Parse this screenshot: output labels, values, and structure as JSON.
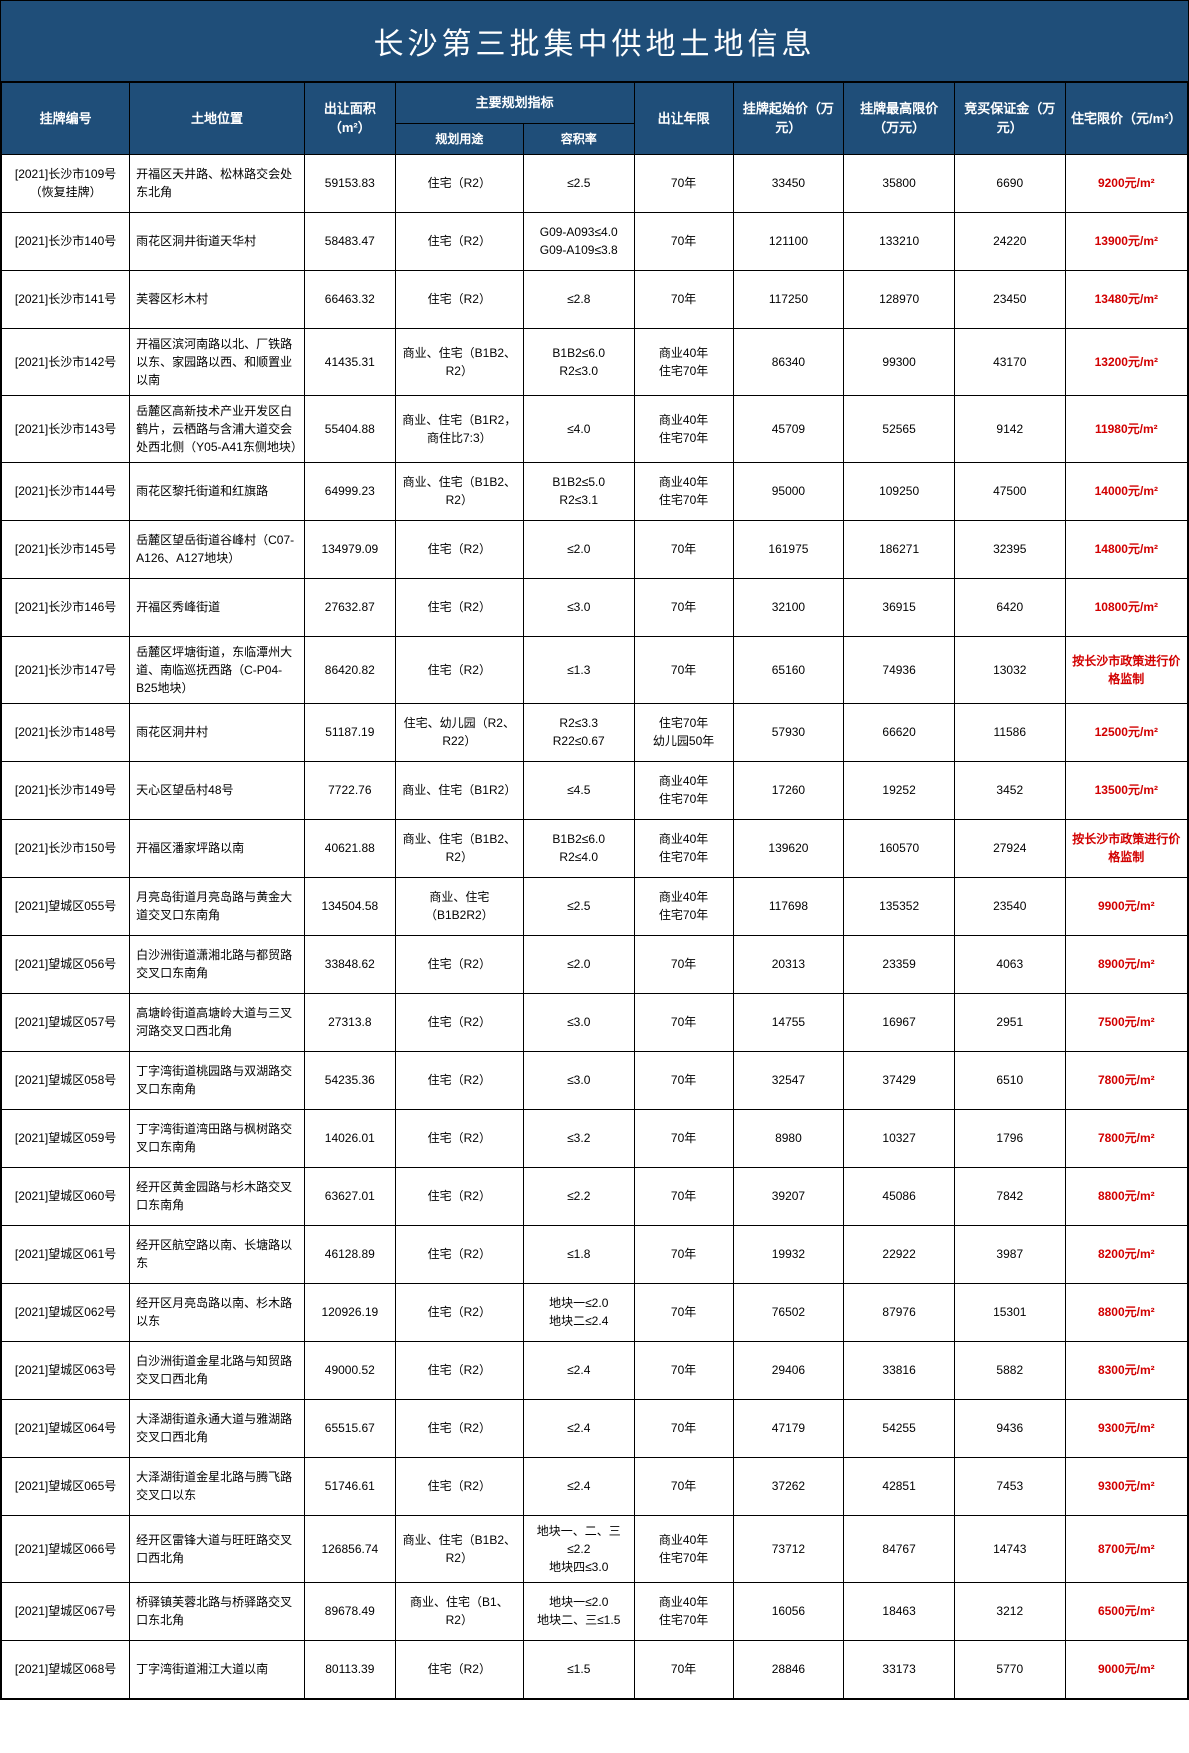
{
  "title": "长沙第三批集中供地土地信息",
  "headers": {
    "id": "挂牌编号",
    "location": "土地位置",
    "area": "出让面积（m²）",
    "planning_group": "主要规划指标",
    "use": "规划用途",
    "far": "容积率",
    "term": "出让年限",
    "start_price": "挂牌起始价（万元）",
    "max_price": "挂牌最高限价（万元）",
    "deposit": "竞买保证金（万元）",
    "limit_price": "住宅限价（元/m²）"
  },
  "rows": [
    {
      "id": "[2021]长沙市109号（恢复挂牌）",
      "location": "开福区天井路、松林路交会处东北角",
      "area": "59153.83",
      "use": "住宅（R2）",
      "far": "≤2.5",
      "term": "70年",
      "start": "33450",
      "max": "35800",
      "deposit": "6690",
      "price": "9200元/m²"
    },
    {
      "id": "[2021]长沙市140号",
      "location": "雨花区洞井街道天华村",
      "area": "58483.47",
      "use": "住宅（R2）",
      "far": "G09-A093≤4.0\nG09-A109≤3.8",
      "term": "70年",
      "start": "121100",
      "max": "133210",
      "deposit": "24220",
      "price": "13900元/m²"
    },
    {
      "id": "[2021]长沙市141号",
      "location": "芙蓉区杉木村",
      "area": "66463.32",
      "use": "住宅（R2）",
      "far": "≤2.8",
      "term": "70年",
      "start": "117250",
      "max": "128970",
      "deposit": "23450",
      "price": "13480元/m²"
    },
    {
      "id": "[2021]长沙市142号",
      "location": "开福区滨河南路以北、厂铁路以东、家园路以西、和顺置业以南",
      "area": "41435.31",
      "use": "商业、住宅（B1B2、R2）",
      "far": "B1B2≤6.0\nR2≤3.0",
      "term": "商业40年\n住宅70年",
      "start": "86340",
      "max": "99300",
      "deposit": "43170",
      "price": "13200元/m²"
    },
    {
      "id": "[2021]长沙市143号",
      "location": "岳麓区高新技术产业开发区白鹤片，云栖路与含浦大道交会处西北侧（Y05-A41东侧地块）",
      "area": "55404.88",
      "use": "商业、住宅（B1R2，商住比7:3）",
      "far": "≤4.0",
      "term": "商业40年\n住宅70年",
      "start": "45709",
      "max": "52565",
      "deposit": "9142",
      "price": "11980元/m²"
    },
    {
      "id": "[2021]长沙市144号",
      "location": "雨花区黎托街道和红旗路",
      "area": "64999.23",
      "use": "商业、住宅（B1B2、R2）",
      "far": "B1B2≤5.0\nR2≤3.1",
      "term": "商业40年\n住宅70年",
      "start": "95000",
      "max": "109250",
      "deposit": "47500",
      "price": "14000元/m²"
    },
    {
      "id": "[2021]长沙市145号",
      "location": "岳麓区望岳街道谷峰村（C07-A126、A127地块）",
      "area": "134979.09",
      "use": "住宅（R2）",
      "far": "≤2.0",
      "term": "70年",
      "start": "161975",
      "max": "186271",
      "deposit": "32395",
      "price": "14800元/m²"
    },
    {
      "id": "[2021]长沙市146号",
      "location": "开福区秀峰街道",
      "area": "27632.87",
      "use": "住宅（R2）",
      "far": "≤3.0",
      "term": "70年",
      "start": "32100",
      "max": "36915",
      "deposit": "6420",
      "price": "10800元/m²"
    },
    {
      "id": "[2021]长沙市147号",
      "location": "岳麓区坪塘街道，东临潭州大道、南临巡抚西路（C-P04-B25地块）",
      "area": "86420.82",
      "use": "住宅（R2）",
      "far": "≤1.3",
      "term": "70年",
      "start": "65160",
      "max": "74936",
      "deposit": "13032",
      "price": "按长沙市政策进行价格监制"
    },
    {
      "id": "[2021]长沙市148号",
      "location": "雨花区洞井村",
      "area": "51187.19",
      "use": "住宅、幼儿园（R2、R22）",
      "far": "R2≤3.3\nR22≤0.67",
      "term": "住宅70年\n幼儿园50年",
      "start": "57930",
      "max": "66620",
      "deposit": "11586",
      "price": "12500元/m²"
    },
    {
      "id": "[2021]长沙市149号",
      "location": "天心区望岳村48号",
      "area": "7722.76",
      "use": "商业、住宅（B1R2）",
      "far": "≤4.5",
      "term": "商业40年\n住宅70年",
      "start": "17260",
      "max": "19252",
      "deposit": "3452",
      "price": "13500元/m²"
    },
    {
      "id": "[2021]长沙市150号",
      "location": "开福区潘家坪路以南",
      "area": "40621.88",
      "use": "商业、住宅（B1B2、R2）",
      "far": "B1B2≤6.0\nR2≤4.0",
      "term": "商业40年\n住宅70年",
      "start": "139620",
      "max": "160570",
      "deposit": "27924",
      "price": "按长沙市政策进行价格监制"
    },
    {
      "id": "[2021]望城区055号",
      "location": "月亮岛街道月亮岛路与黄金大道交叉口东南角",
      "area": "134504.58",
      "use": "商业、住宅（B1B2R2）",
      "far": "≤2.5",
      "term": "商业40年\n住宅70年",
      "start": "117698",
      "max": "135352",
      "deposit": "23540",
      "price": "9900元/m²"
    },
    {
      "id": "[2021]望城区056号",
      "location": "白沙洲街道潇湘北路与都贸路交叉口东南角",
      "area": "33848.62",
      "use": "住宅（R2）",
      "far": "≤2.0",
      "term": "70年",
      "start": "20313",
      "max": "23359",
      "deposit": "4063",
      "price": "8900元/m²"
    },
    {
      "id": "[2021]望城区057号",
      "location": "高塘岭街道高塘岭大道与三叉河路交叉口西北角",
      "area": "27313.8",
      "use": "住宅（R2）",
      "far": "≤3.0",
      "term": "70年",
      "start": "14755",
      "max": "16967",
      "deposit": "2951",
      "price": "7500元/m²"
    },
    {
      "id": "[2021]望城区058号",
      "location": "丁字湾街道桃园路与双湖路交叉口东南角",
      "area": "54235.36",
      "use": "住宅（R2）",
      "far": "≤3.0",
      "term": "70年",
      "start": "32547",
      "max": "37429",
      "deposit": "6510",
      "price": "7800元/m²"
    },
    {
      "id": "[2021]望城区059号",
      "location": "丁字湾街道湾田路与枫树路交叉口东南角",
      "area": "14026.01",
      "use": "住宅（R2）",
      "far": "≤3.2",
      "term": "70年",
      "start": "8980",
      "max": "10327",
      "deposit": "1796",
      "price": "7800元/m²"
    },
    {
      "id": "[2021]望城区060号",
      "location": "经开区黄金园路与杉木路交叉口东南角",
      "area": "63627.01",
      "use": "住宅（R2）",
      "far": "≤2.2",
      "term": "70年",
      "start": "39207",
      "max": "45086",
      "deposit": "7842",
      "price": "8800元/m²"
    },
    {
      "id": "[2021]望城区061号",
      "location": "经开区航空路以南、长塘路以东",
      "area": "46128.89",
      "use": "住宅（R2）",
      "far": "≤1.8",
      "term": "70年",
      "start": "19932",
      "max": "22922",
      "deposit": "3987",
      "price": "8200元/m²"
    },
    {
      "id": "[2021]望城区062号",
      "location": "经开区月亮岛路以南、杉木路以东",
      "area": "120926.19",
      "use": "住宅（R2）",
      "far": "地块一≤2.0\n地块二≤2.4",
      "term": "70年",
      "start": "76502",
      "max": "87976",
      "deposit": "15301",
      "price": "8800元/m²"
    },
    {
      "id": "[2021]望城区063号",
      "location": "白沙洲街道金星北路与知贸路交叉口西北角",
      "area": "49000.52",
      "use": "住宅（R2）",
      "far": "≤2.4",
      "term": "70年",
      "start": "29406",
      "max": "33816",
      "deposit": "5882",
      "price": "8300元/m²"
    },
    {
      "id": "[2021]望城区064号",
      "location": "大泽湖街道永通大道与雅湖路交叉口西北角",
      "area": "65515.67",
      "use": "住宅（R2）",
      "far": "≤2.4",
      "term": "70年",
      "start": "47179",
      "max": "54255",
      "deposit": "9436",
      "price": "9300元/m²"
    },
    {
      "id": "[2021]望城区065号",
      "location": "大泽湖街道金星北路与腾飞路交叉口以东",
      "area": "51746.61",
      "use": "住宅（R2）",
      "far": "≤2.4",
      "term": "70年",
      "start": "37262",
      "max": "42851",
      "deposit": "7453",
      "price": "9300元/m²"
    },
    {
      "id": "[2021]望城区066号",
      "location": "经开区雷锋大道与旺旺路交叉口西北角",
      "area": "126856.74",
      "use": "商业、住宅（B1B2、R2）",
      "far": "地块一、二、三≤2.2\n地块四≤3.0",
      "term": "商业40年\n住宅70年",
      "start": "73712",
      "max": "84767",
      "deposit": "14743",
      "price": "8700元/m²"
    },
    {
      "id": "[2021]望城区067号",
      "location": "桥驿镇芙蓉北路与桥驿路交叉口东北角",
      "area": "89678.49",
      "use": "商业、住宅（B1、R2）",
      "far": "地块一≤2.0\n地块二、三≤1.5",
      "term": "商业40年\n住宅70年",
      "start": "16056",
      "max": "18463",
      "deposit": "3212",
      "price": "6500元/m²"
    },
    {
      "id": "[2021]望城区068号",
      "location": "丁字湾街道湘江大道以南",
      "area": "80113.39",
      "use": "住宅（R2）",
      "far": "≤1.5",
      "term": "70年",
      "start": "28846",
      "max": "33173",
      "deposit": "5770",
      "price": "9000元/m²"
    }
  ]
}
